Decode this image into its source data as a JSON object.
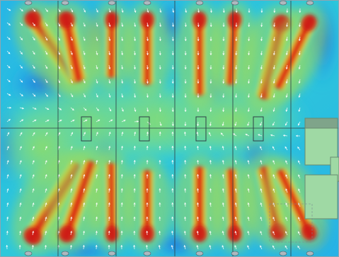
{
  "figure": {
    "kind": "velocity-magnitude-contour-with-vector-arrows",
    "colormap": [
      "#1f5fd8",
      "#22a4ee",
      "#35d4d0",
      "#62d8a0",
      "#9ddc5c",
      "#d9de2e",
      "#f4ab1e",
      "#ec5a1a",
      "#cc1616"
    ],
    "colors": {
      "arrow": "#ffffff",
      "partition_line": "#2f3f47",
      "side_block_fill": "#9fd9a4",
      "side_block_edge": "#6a8a70",
      "nozzle": "#aeb8bf",
      "nozzle_edge": "#4e5a60"
    },
    "printed_text": []
  }
}
